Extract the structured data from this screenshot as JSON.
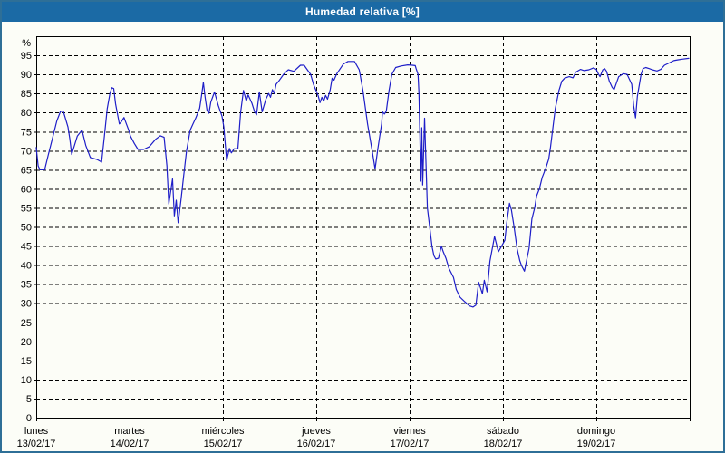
{
  "window": {
    "title": "Humedad relativa [%]"
  },
  "colors": {
    "titlebar_bg": "#1b6aa5",
    "titlebar_text": "#ffffff",
    "window_border": "#2e6f97",
    "background": "#fcfdf7",
    "line": "#1e1ec8",
    "grid": "#000000",
    "text": "#000000"
  },
  "chart_data": {
    "type": "line",
    "title": "Humedad relativa [%]",
    "ylabel": "%",
    "ylim": [
      0,
      100
    ],
    "yticks": [
      0,
      5,
      10,
      15,
      20,
      25,
      30,
      35,
      40,
      45,
      50,
      55,
      60,
      65,
      70,
      75,
      80,
      85,
      90,
      95
    ],
    "grid": true,
    "legend": "none",
    "x_unit": "days",
    "xlim": [
      0,
      7
    ],
    "x_categories": [
      {
        "day": "lunes",
        "date": "13/02/17"
      },
      {
        "day": "martes",
        "date": "14/02/17"
      },
      {
        "day": "miércoles",
        "date": "15/02/17"
      },
      {
        "day": "jueves",
        "date": "16/02/17"
      },
      {
        "day": "viernes",
        "date": "17/02/17"
      },
      {
        "day": "sábado",
        "date": "18/02/17"
      },
      {
        "day": "domingo",
        "date": "19/02/17"
      }
    ],
    "series": [
      {
        "name": "Humedad relativa",
        "color": "#1e1ec8",
        "points": [
          [
            0.0,
            70.8
          ],
          [
            0.02,
            66.0
          ],
          [
            0.04,
            65.0
          ],
          [
            0.09,
            65.0
          ],
          [
            0.13,
            69.0
          ],
          [
            0.18,
            73.8
          ],
          [
            0.22,
            77.8
          ],
          [
            0.26,
            80.3
          ],
          [
            0.29,
            80.3
          ],
          [
            0.34,
            76.2
          ],
          [
            0.36,
            73.0
          ],
          [
            0.38,
            69.0
          ],
          [
            0.44,
            73.8
          ],
          [
            0.49,
            75.4
          ],
          [
            0.53,
            71.4
          ],
          [
            0.58,
            68.2
          ],
          [
            0.65,
            67.7
          ],
          [
            0.7,
            67.0
          ],
          [
            0.73,
            73.8
          ],
          [
            0.76,
            81.0
          ],
          [
            0.79,
            85.1
          ],
          [
            0.81,
            86.5
          ],
          [
            0.83,
            86.3
          ],
          [
            0.85,
            82.3
          ],
          [
            0.89,
            77.0
          ],
          [
            0.91,
            77.5
          ],
          [
            0.94,
            78.7
          ],
          [
            0.99,
            75.4
          ],
          [
            1.01,
            73.8
          ],
          [
            1.05,
            71.9
          ],
          [
            1.09,
            70.3
          ],
          [
            1.15,
            70.3
          ],
          [
            1.21,
            71.0
          ],
          [
            1.28,
            73.0
          ],
          [
            1.33,
            73.9
          ],
          [
            1.37,
            73.5
          ],
          [
            1.4,
            66.0
          ],
          [
            1.42,
            56.0
          ],
          [
            1.46,
            62.6
          ],
          [
            1.48,
            52.9
          ],
          [
            1.5,
            57.0
          ],
          [
            1.52,
            51.1
          ],
          [
            1.55,
            57.0
          ],
          [
            1.58,
            63.4
          ],
          [
            1.61,
            69.8
          ],
          [
            1.65,
            75.4
          ],
          [
            1.68,
            77.0
          ],
          [
            1.71,
            78.6
          ],
          [
            1.75,
            81.1
          ],
          [
            1.77,
            84.3
          ],
          [
            1.79,
            87.9
          ],
          [
            1.81,
            83.9
          ],
          [
            1.83,
            80.5
          ],
          [
            1.85,
            79.8
          ],
          [
            1.87,
            82.7
          ],
          [
            1.91,
            85.4
          ],
          [
            1.95,
            81.9
          ],
          [
            1.99,
            79.0
          ],
          [
            2.01,
            76.2
          ],
          [
            2.04,
            67.4
          ],
          [
            2.07,
            70.6
          ],
          [
            2.09,
            69.4
          ],
          [
            2.12,
            70.5
          ],
          [
            2.16,
            70.5
          ],
          [
            2.19,
            80.2
          ],
          [
            2.22,
            85.8
          ],
          [
            2.25,
            83.0
          ],
          [
            2.27,
            84.6
          ],
          [
            2.31,
            82.5
          ],
          [
            2.34,
            80.2
          ],
          [
            2.36,
            79.4
          ],
          [
            2.39,
            85.4
          ],
          [
            2.42,
            80.2
          ],
          [
            2.46,
            83.5
          ],
          [
            2.49,
            85.0
          ],
          [
            2.51,
            84.0
          ],
          [
            2.53,
            86.0
          ],
          [
            2.55,
            85.0
          ],
          [
            2.57,
            87.4
          ],
          [
            2.6,
            88.3
          ],
          [
            2.65,
            90.0
          ],
          [
            2.7,
            91.2
          ],
          [
            2.76,
            90.8
          ],
          [
            2.83,
            92.4
          ],
          [
            2.87,
            92.4
          ],
          [
            2.94,
            90.0
          ],
          [
            2.97,
            87.4
          ],
          [
            3.02,
            84.4
          ],
          [
            3.04,
            82.6
          ],
          [
            3.06,
            84.0
          ],
          [
            3.08,
            83.0
          ],
          [
            3.1,
            84.5
          ],
          [
            3.12,
            83.5
          ],
          [
            3.15,
            86.0
          ],
          [
            3.17,
            89.0
          ],
          [
            3.19,
            88.5
          ],
          [
            3.22,
            90.2
          ],
          [
            3.29,
            92.7
          ],
          [
            3.34,
            93.4
          ],
          [
            3.41,
            93.4
          ],
          [
            3.46,
            91.2
          ],
          [
            3.5,
            85.8
          ],
          [
            3.55,
            77.0
          ],
          [
            3.6,
            69.8
          ],
          [
            3.63,
            65.2
          ],
          [
            3.66,
            70.6
          ],
          [
            3.7,
            77.0
          ],
          [
            3.71,
            80.2
          ],
          [
            3.73,
            79.6
          ],
          [
            3.75,
            80.4
          ],
          [
            3.78,
            85.8
          ],
          [
            3.81,
            90.0
          ],
          [
            3.85,
            91.8
          ],
          [
            3.91,
            92.2
          ],
          [
            3.98,
            92.5
          ],
          [
            4.03,
            92.4
          ],
          [
            4.06,
            92.3
          ],
          [
            4.07,
            91.5
          ],
          [
            4.09,
            90.0
          ],
          [
            4.1,
            85.0
          ],
          [
            4.12,
            62.0
          ],
          [
            4.13,
            76.0
          ],
          [
            4.14,
            61.0
          ],
          [
            4.16,
            78.5
          ],
          [
            4.19,
            55.0
          ],
          [
            4.22,
            48.9
          ],
          [
            4.24,
            44.9
          ],
          [
            4.26,
            42.5
          ],
          [
            4.28,
            41.6
          ],
          [
            4.31,
            41.8
          ],
          [
            4.34,
            45.0
          ],
          [
            4.36,
            43.5
          ],
          [
            4.39,
            41.7
          ],
          [
            4.42,
            39.2
          ],
          [
            4.47,
            36.8
          ],
          [
            4.5,
            33.6
          ],
          [
            4.54,
            31.6
          ],
          [
            4.59,
            30.4
          ],
          [
            4.64,
            29.3
          ],
          [
            4.68,
            29.0
          ],
          [
            4.71,
            29.5
          ],
          [
            4.74,
            35.5
          ],
          [
            4.78,
            32.5
          ],
          [
            4.8,
            36.0
          ],
          [
            4.83,
            33.0
          ],
          [
            4.86,
            41.0
          ],
          [
            4.91,
            47.5
          ],
          [
            4.95,
            43.5
          ],
          [
            4.99,
            45.2
          ],
          [
            5.02,
            46.5
          ],
          [
            5.04,
            51.0
          ],
          [
            5.07,
            56.2
          ],
          [
            5.09,
            54.5
          ],
          [
            5.12,
            49.8
          ],
          [
            5.15,
            44.4
          ],
          [
            5.18,
            41.2
          ],
          [
            5.2,
            39.8
          ],
          [
            5.23,
            38.4
          ],
          [
            5.28,
            44.4
          ],
          [
            5.3,
            49.6
          ],
          [
            5.31,
            52.1
          ],
          [
            5.34,
            55.0
          ],
          [
            5.36,
            58.1
          ],
          [
            5.39,
            60.0
          ],
          [
            5.42,
            63.0
          ],
          [
            5.46,
            65.5
          ],
          [
            5.49,
            67.8
          ],
          [
            5.51,
            71.0
          ],
          [
            5.54,
            77.0
          ],
          [
            5.56,
            81.0
          ],
          [
            5.6,
            85.8
          ],
          [
            5.63,
            88.2
          ],
          [
            5.66,
            89.0
          ],
          [
            5.71,
            89.4
          ],
          [
            5.75,
            89.1
          ],
          [
            5.78,
            90.6
          ],
          [
            5.83,
            91.3
          ],
          [
            5.87,
            91.0
          ],
          [
            5.92,
            91.2
          ],
          [
            5.97,
            91.7
          ],
          [
            6.0,
            91.3
          ],
          [
            6.02,
            90.2
          ],
          [
            6.04,
            89.4
          ],
          [
            6.07,
            91.2
          ],
          [
            6.09,
            91.5
          ],
          [
            6.11,
            90.8
          ],
          [
            6.14,
            88.2
          ],
          [
            6.17,
            86.6
          ],
          [
            6.19,
            86.0
          ],
          [
            6.24,
            89.4
          ],
          [
            6.29,
            90.2
          ],
          [
            6.33,
            90.0
          ],
          [
            6.38,
            87.4
          ],
          [
            6.4,
            81.8
          ],
          [
            6.42,
            78.6
          ],
          [
            6.44,
            84.2
          ],
          [
            6.48,
            90.0
          ],
          [
            6.5,
            91.5
          ],
          [
            6.53,
            91.8
          ],
          [
            6.57,
            91.5
          ],
          [
            6.6,
            91.2
          ],
          [
            6.65,
            90.9
          ],
          [
            6.69,
            91.3
          ],
          [
            6.73,
            92.4
          ],
          [
            6.78,
            93.0
          ],
          [
            6.83,
            93.6
          ],
          [
            6.87,
            93.8
          ],
          [
            6.92,
            94.0
          ],
          [
            6.99,
            94.2
          ]
        ]
      }
    ]
  }
}
